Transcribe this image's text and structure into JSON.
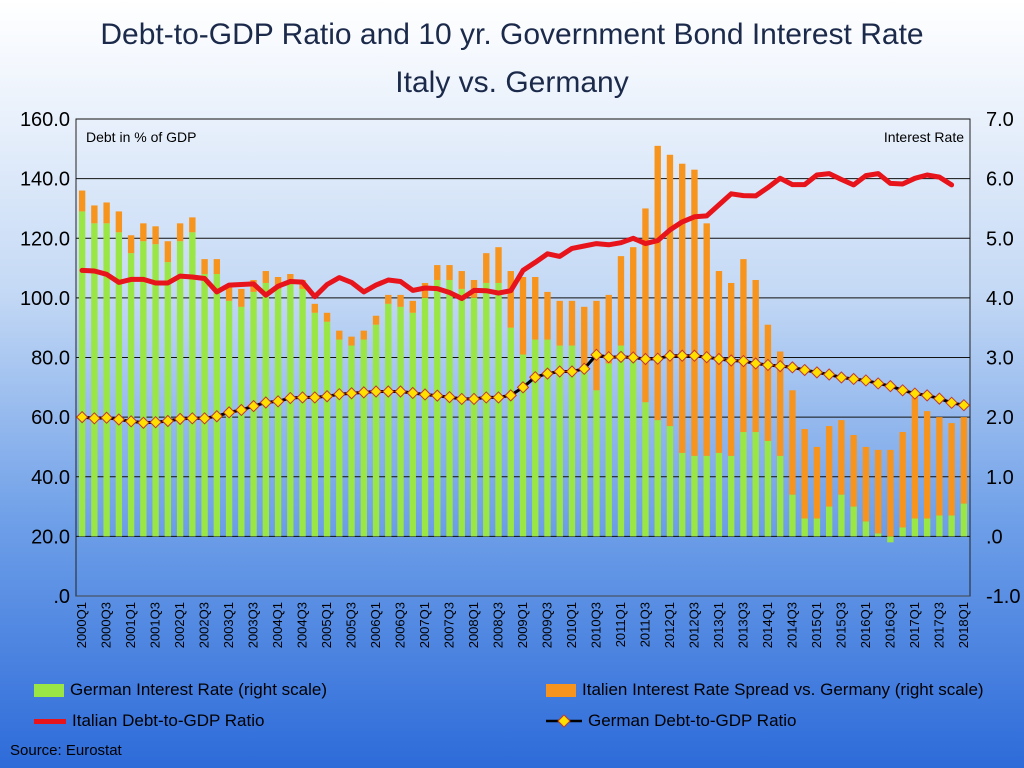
{
  "title_line1": "Debt-to-GDP Ratio and 10 yr. Government Bond Interest Rate",
  "title_line2": "Italy vs. Germany",
  "left_axis_label": "Debt in % of GDP",
  "right_axis_label": "Interest Rate",
  "source": "Source: Eurostat",
  "legend": {
    "german_rate": "German Interest Rate  (right scale)",
    "spread": "Italien Interest Rate Spread vs. Germany (right scale)",
    "italy_debt": "Italian Debt-to-GDP Ratio",
    "germany_debt": "German Debt-to-GDP Ratio"
  },
  "colors": {
    "german_rate": "#99e645",
    "spread": "#f7941d",
    "italy_debt": "#e8141b",
    "germany_debt_line": "#000000",
    "germany_debt_marker": "#ffe000",
    "germany_debt_marker_edge": "#c0392b"
  },
  "chart_data": {
    "type": "bar",
    "categories": [
      "2000Q1",
      "2000Q2",
      "2000Q3",
      "2000Q4",
      "2001Q1",
      "2001Q2",
      "2001Q3",
      "2001Q4",
      "2002Q1",
      "2002Q2",
      "2002Q3",
      "2002Q4",
      "2003Q1",
      "2003Q2",
      "2003Q3",
      "2003Q4",
      "2004Q1",
      "2004Q2",
      "2004Q3",
      "2004Q4",
      "2005Q1",
      "2005Q2",
      "2005Q3",
      "2005Q4",
      "2006Q1",
      "2006Q2",
      "2006Q3",
      "2006Q4",
      "2007Q1",
      "2007Q2",
      "2007Q3",
      "2007Q4",
      "2008Q1",
      "2008Q2",
      "2008Q3",
      "2008Q4",
      "2009Q1",
      "2009Q2",
      "2009Q3",
      "2009Q4",
      "2010Q1",
      "2010Q2",
      "2010Q3",
      "2010Q4",
      "2011Q1",
      "2011Q2",
      "2011Q3",
      "2011Q4",
      "2012Q1",
      "2012Q2",
      "2012Q3",
      "2012Q4",
      "2013Q1",
      "2013Q2",
      "2013Q3",
      "2013Q4",
      "2014Q1",
      "2014Q2",
      "2014Q3",
      "2014Q4",
      "2015Q1",
      "2015Q2",
      "2015Q3",
      "2015Q4",
      "2016Q1",
      "2016Q2",
      "2016Q3",
      "2016Q4",
      "2017Q1",
      "2017Q2",
      "2017Q3",
      "2017Q4",
      "2018Q1"
    ],
    "x_tick_labels": [
      "2000Q1",
      "2000Q3",
      "2001Q1",
      "2001Q3",
      "2002Q1",
      "2002Q3",
      "2003Q1",
      "2003Q3",
      "2004Q1",
      "2004Q3",
      "2005Q1",
      "2005Q3",
      "2006Q1",
      "2006Q3",
      "2007Q1",
      "2007Q3",
      "2008Q1",
      "2008Q3",
      "2009Q1",
      "2009Q3",
      "2010Q1",
      "2010Q3",
      "2011Q1",
      "2011Q3",
      "2012Q1",
      "2012Q3",
      "2013Q1",
      "2013Q3",
      "2014Q1",
      "2014Q3",
      "2015Q1",
      "2015Q3",
      "2016Q1",
      "2016Q3",
      "2017Q1",
      "2017Q3",
      "2018Q1"
    ],
    "y_left": {
      "range": [
        0,
        160
      ],
      "ticks": [
        ".0",
        "20.0",
        "40.0",
        "60.0",
        "80.0",
        "100.0",
        "120.0",
        "140.0",
        "160.0"
      ]
    },
    "y_right": {
      "range": [
        -1,
        7
      ],
      "ticks": [
        "-1.0",
        ".0",
        "1.0",
        "2.0",
        "3.0",
        "4.0",
        "5.0",
        "6.0",
        "7.0"
      ]
    },
    "grid": true,
    "series": [
      {
        "name": "German Interest Rate  (right scale)",
        "axis": "right",
        "kind": "stacked-bar",
        "values": [
          5.45,
          5.25,
          5.25,
          5.1,
          4.75,
          4.95,
          4.9,
          4.6,
          4.95,
          5.1,
          4.4,
          4.4,
          3.95,
          3.85,
          4.1,
          4.25,
          4.15,
          4.25,
          4.15,
          3.75,
          3.6,
          3.3,
          3.2,
          3.3,
          3.55,
          3.9,
          3.85,
          3.75,
          4.0,
          4.3,
          4.3,
          4.15,
          4.0,
          4.25,
          4.25,
          3.5,
          3.05,
          3.3,
          3.3,
          3.2,
          3.2,
          2.85,
          2.45,
          2.9,
          3.2,
          3.05,
          2.25,
          1.95,
          1.85,
          1.4,
          1.35,
          1.35,
          1.4,
          1.35,
          1.75,
          1.75,
          1.6,
          1.35,
          0.7,
          0.3,
          0.3,
          0.5,
          0.7,
          0.5,
          0.25,
          0.05,
          -0.1,
          0.15,
          0.3,
          0.3,
          0.35,
          0.35,
          0.55
        ]
      },
      {
        "name": "Italien Interest Rate Spread vs. Germany (right scale)",
        "axis": "right",
        "kind": "stacked-bar",
        "values": [
          0.35,
          0.3,
          0.35,
          0.35,
          0.3,
          0.3,
          0.3,
          0.35,
          0.3,
          0.25,
          0.25,
          0.25,
          0.25,
          0.3,
          0.2,
          0.2,
          0.2,
          0.15,
          0.15,
          0.15,
          0.15,
          0.15,
          0.15,
          0.15,
          0.15,
          0.15,
          0.2,
          0.2,
          0.25,
          0.25,
          0.25,
          0.3,
          0.3,
          0.5,
          0.6,
          0.95,
          1.3,
          1.05,
          0.8,
          0.75,
          0.75,
          1.0,
          1.5,
          1.15,
          1.5,
          1.8,
          3.25,
          4.6,
          4.55,
          4.85,
          4.8,
          3.9,
          3.05,
          2.9,
          2.9,
          2.55,
          1.95,
          1.75,
          1.75,
          1.5,
          1.2,
          1.35,
          1.25,
          1.2,
          1.25,
          1.4,
          1.45,
          1.6,
          2.05,
          1.8,
          1.65,
          1.55,
          1.45
        ]
      },
      {
        "name": "Italian Debt-to-GDP Ratio",
        "axis": "left",
        "kind": "line",
        "values": [
          109.2,
          109.0,
          107.9,
          105.2,
          106.2,
          106.2,
          105.0,
          105.0,
          107.3,
          107.0,
          106.5,
          102.0,
          104.3,
          104.5,
          104.7,
          100.9,
          103.9,
          105.5,
          105.3,
          100.4,
          104.5,
          106.8,
          105.2,
          102.0,
          104.3,
          106.0,
          105.5,
          102.5,
          103.3,
          103.1,
          101.8,
          99.8,
          102.5,
          102.4,
          101.6,
          102.4,
          109.2,
          111.9,
          114.8,
          113.9,
          116.6,
          117.4,
          118.2,
          117.8,
          118.5,
          120.0,
          118.2,
          119.2,
          122.8,
          125.5,
          127.2,
          127.5,
          131.2,
          134.9,
          134.3,
          134.2,
          137.0,
          140.1,
          138.0,
          138.0,
          141.2,
          141.7,
          139.7,
          137.9,
          141.0,
          141.7,
          138.4,
          138.2,
          140.1,
          141.2,
          140.5,
          137.9,
          null
        ]
      },
      {
        "name": "German Debt-to-GDP Ratio",
        "axis": "left",
        "kind": "line-marker",
        "values": [
          60.0,
          59.6,
          59.8,
          59.2,
          58.6,
          58.1,
          58.3,
          58.7,
          59.4,
          59.6,
          59.6,
          60.3,
          61.6,
          62.4,
          63.7,
          64.9,
          65.3,
          66.4,
          66.6,
          66.6,
          67.0,
          67.7,
          68.0,
          68.3,
          68.6,
          68.6,
          68.6,
          68.1,
          67.6,
          67.2,
          66.7,
          66.1,
          66.1,
          66.6,
          66.6,
          67.3,
          70.0,
          73.4,
          74.6,
          75.3,
          75.3,
          76.2,
          80.9,
          80.1,
          80.2,
          80.0,
          79.5,
          79.6,
          80.6,
          80.6,
          80.6,
          80.1,
          79.5,
          79.0,
          78.8,
          78.0,
          77.5,
          77.1,
          76.7,
          75.8,
          75.0,
          74.3,
          73.3,
          72.8,
          72.3,
          71.3,
          70.4,
          69.0,
          67.9,
          67.3,
          66.2,
          64.8,
          64.0
        ]
      }
    ]
  }
}
